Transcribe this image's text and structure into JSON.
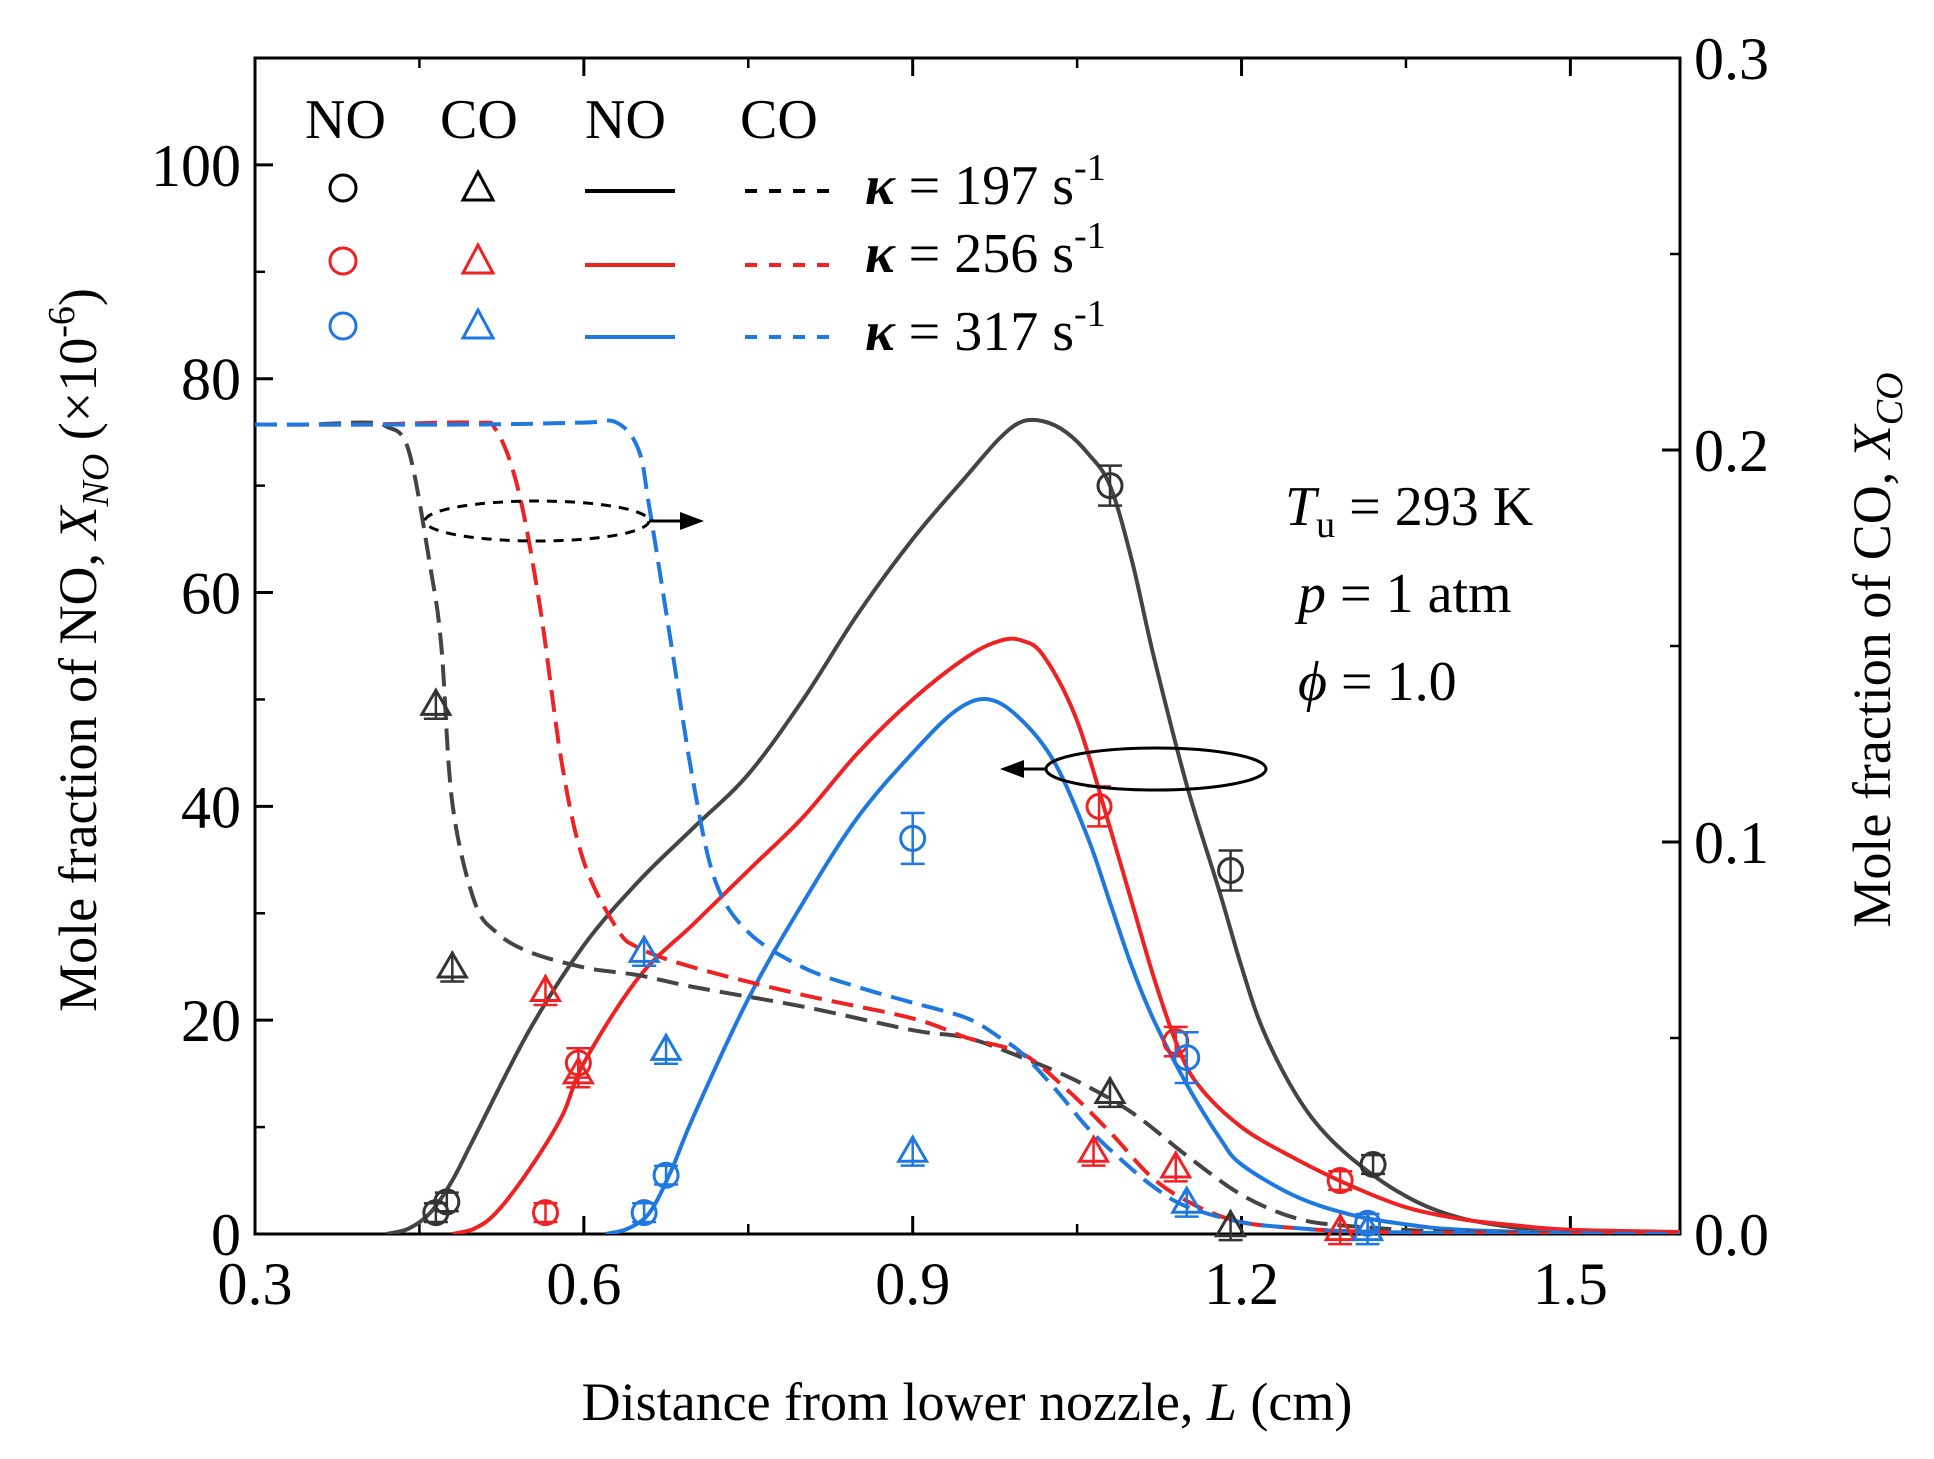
{
  "chart_data": {
    "type": "line",
    "xlabel_prefix": "Distance from lower nozzle, ",
    "xlabel_var": "L",
    "xlabel_suffix": " (cm)",
    "ylabel_left_prefix": "Mole fraction of NO, ",
    "ylabel_left_var": "X",
    "ylabel_left_sub": "NO",
    "ylabel_left_suffix": " (×10",
    "ylabel_left_exp": "-6",
    "ylabel_left_close": ")",
    "ylabel_right_prefix": "Mole fraction of CO, ",
    "ylabel_right_var": "X",
    "ylabel_right_sub": "CO",
    "xlim": [
      0.3,
      1.6
    ],
    "ylim_left": [
      0,
      110
    ],
    "ylim_right": [
      0,
      0.3
    ],
    "x_ticks": [
      0.3,
      0.6,
      0.9,
      1.2,
      1.5
    ],
    "x_tick_labels": [
      "0.3",
      "0.6",
      "0.9",
      "1.2",
      "1.5"
    ],
    "y_left_ticks": [
      0,
      20,
      40,
      60,
      80,
      100
    ],
    "y_left_tick_labels": [
      "0",
      "20",
      "40",
      "60",
      "80",
      "100"
    ],
    "y_right_ticks": [
      0,
      0.1,
      0.2,
      0.3
    ],
    "y_right_tick_labels": [
      "0.0",
      "0.1",
      "0.2",
      "0.3"
    ],
    "legend": {
      "header_symbols_no": "NO",
      "header_symbols_co": "CO",
      "header_lines_no": "NO",
      "header_lines_co": "CO",
      "kappa_symbol": "κ",
      "entries": [
        {
          "value": " = 197 s",
          "exp": "-1",
          "color": "#000000"
        },
        {
          "value": " = 256 s",
          "exp": "-1",
          "color": "#ee2222"
        },
        {
          "value": " = 317 s",
          "exp": "-1",
          "color": "#1f78e0"
        }
      ]
    },
    "conditions": {
      "t_var": "T",
      "t_sub": "u",
      "t_value": " = 293 K",
      "p_var": "p",
      "p_value": " = 1 atm",
      "phi_var": "ϕ",
      "phi_value": " = 1.0"
    },
    "series": [
      {
        "name": "NO model, κ = 197 s-1",
        "species": "NO",
        "axis": "left",
        "kind": "line",
        "color": "#444444",
        "points": [
          [
            0.42,
            0
          ],
          [
            0.44,
            0.5
          ],
          [
            0.46,
            2
          ],
          [
            0.48,
            5
          ],
          [
            0.5,
            9
          ],
          [
            0.55,
            19
          ],
          [
            0.6,
            27
          ],
          [
            0.65,
            33
          ],
          [
            0.7,
            38
          ],
          [
            0.75,
            43
          ],
          [
            0.8,
            50
          ],
          [
            0.85,
            58
          ],
          [
            0.9,
            65
          ],
          [
            0.95,
            71
          ],
          [
            0.98,
            74.5
          ],
          [
            1.0,
            76
          ],
          [
            1.02,
            76
          ],
          [
            1.04,
            75
          ],
          [
            1.06,
            73
          ],
          [
            1.08,
            70
          ],
          [
            1.1,
            63
          ],
          [
            1.12,
            54
          ],
          [
            1.15,
            42
          ],
          [
            1.18,
            32
          ],
          [
            1.2,
            25
          ],
          [
            1.22,
            19
          ],
          [
            1.25,
            13
          ],
          [
            1.28,
            9
          ],
          [
            1.32,
            5.5
          ],
          [
            1.36,
            3
          ],
          [
            1.4,
            1.5
          ],
          [
            1.45,
            0.6
          ],
          [
            1.5,
            0.2
          ],
          [
            1.6,
            0
          ]
        ]
      },
      {
        "name": "NO model, κ = 256 s-1",
        "species": "NO",
        "axis": "left",
        "kind": "line",
        "color": "#ee2222",
        "points": [
          [
            0.48,
            0
          ],
          [
            0.5,
            0.5
          ],
          [
            0.52,
            2
          ],
          [
            0.55,
            6
          ],
          [
            0.58,
            11
          ],
          [
            0.6,
            16
          ],
          [
            0.65,
            24
          ],
          [
            0.7,
            29
          ],
          [
            0.75,
            34
          ],
          [
            0.8,
            39
          ],
          [
            0.85,
            45
          ],
          [
            0.9,
            50
          ],
          [
            0.95,
            54
          ],
          [
            0.98,
            55.5
          ],
          [
            1.0,
            55.5
          ],
          [
            1.02,
            54
          ],
          [
            1.05,
            48
          ],
          [
            1.08,
            38
          ],
          [
            1.1,
            31
          ],
          [
            1.12,
            24
          ],
          [
            1.14,
            18
          ],
          [
            1.16,
            14
          ],
          [
            1.2,
            10
          ],
          [
            1.25,
            7
          ],
          [
            1.3,
            4.5
          ],
          [
            1.35,
            2.5
          ],
          [
            1.4,
            1.4
          ],
          [
            1.45,
            0.8
          ],
          [
            1.5,
            0.4
          ],
          [
            1.6,
            0.2
          ]
        ]
      },
      {
        "name": "NO model, κ = 317 s-1",
        "species": "NO",
        "axis": "left",
        "kind": "line",
        "color": "#1f78e0",
        "points": [
          [
            0.62,
            0
          ],
          [
            0.64,
            0.5
          ],
          [
            0.66,
            2
          ],
          [
            0.68,
            6
          ],
          [
            0.7,
            11
          ],
          [
            0.75,
            22
          ],
          [
            0.8,
            31
          ],
          [
            0.85,
            39
          ],
          [
            0.9,
            45
          ],
          [
            0.94,
            49
          ],
          [
            0.97,
            50
          ],
          [
            1.0,
            48
          ],
          [
            1.03,
            44
          ],
          [
            1.06,
            37
          ],
          [
            1.08,
            31
          ],
          [
            1.1,
            25
          ],
          [
            1.12,
            20
          ],
          [
            1.15,
            14
          ],
          [
            1.18,
            9
          ],
          [
            1.2,
            6.5
          ],
          [
            1.25,
            3.5
          ],
          [
            1.3,
            1.8
          ],
          [
            1.35,
            0.9
          ],
          [
            1.4,
            0.4
          ],
          [
            1.5,
            0.1
          ],
          [
            1.6,
            0
          ]
        ]
      },
      {
        "name": "CO model, κ = 197 s-1",
        "species": "CO",
        "axis": "right",
        "kind": "line",
        "color": "#444444",
        "points": [
          [
            0.3,
            0.2065
          ],
          [
            0.35,
            0.2065
          ],
          [
            0.4,
            0.207
          ],
          [
            0.42,
            0.206
          ],
          [
            0.44,
            0.2
          ],
          [
            0.46,
            0.17
          ],
          [
            0.47,
            0.15
          ],
          [
            0.48,
            0.11
          ],
          [
            0.5,
            0.085
          ],
          [
            0.52,
            0.077
          ],
          [
            0.55,
            0.072
          ],
          [
            0.6,
            0.068
          ],
          [
            0.65,
            0.066
          ],
          [
            0.7,
            0.063
          ],
          [
            0.8,
            0.058
          ],
          [
            0.9,
            0.052
          ],
          [
            0.95,
            0.05
          ],
          [
            1.0,
            0.045
          ],
          [
            1.05,
            0.039
          ],
          [
            1.1,
            0.031
          ],
          [
            1.15,
            0.02
          ],
          [
            1.2,
            0.01
          ],
          [
            1.25,
            0.004
          ],
          [
            1.3,
            0.002
          ],
          [
            1.4,
            0.0005
          ],
          [
            1.6,
            0
          ]
        ]
      },
      {
        "name": "CO model, κ = 256 s-1",
        "species": "CO",
        "axis": "right",
        "kind": "line",
        "color": "#ee2222",
        "points": [
          [
            0.3,
            0.2065
          ],
          [
            0.4,
            0.2065
          ],
          [
            0.5,
            0.207
          ],
          [
            0.52,
            0.205
          ],
          [
            0.54,
            0.19
          ],
          [
            0.56,
            0.16
          ],
          [
            0.58,
            0.12
          ],
          [
            0.6,
            0.095
          ],
          [
            0.63,
            0.078
          ],
          [
            0.65,
            0.073
          ],
          [
            0.7,
            0.068
          ],
          [
            0.8,
            0.061
          ],
          [
            0.9,
            0.055
          ],
          [
            0.95,
            0.05
          ],
          [
            1.0,
            0.046
          ],
          [
            1.04,
            0.037
          ],
          [
            1.08,
            0.026
          ],
          [
            1.12,
            0.014
          ],
          [
            1.16,
            0.007
          ],
          [
            1.2,
            0.003
          ],
          [
            1.25,
            0.0015
          ],
          [
            1.3,
            0.0007
          ],
          [
            1.4,
            0.0002
          ],
          [
            1.6,
            0
          ]
        ]
      },
      {
        "name": "CO model, κ = 317 s-1",
        "species": "CO",
        "axis": "right",
        "kind": "line",
        "color": "#1f78e0",
        "points": [
          [
            0.3,
            0.2065
          ],
          [
            0.5,
            0.2065
          ],
          [
            0.6,
            0.207
          ],
          [
            0.63,
            0.207
          ],
          [
            0.65,
            0.2
          ],
          [
            0.66,
            0.185
          ],
          [
            0.68,
            0.15
          ],
          [
            0.7,
            0.115
          ],
          [
            0.72,
            0.09
          ],
          [
            0.75,
            0.077
          ],
          [
            0.8,
            0.068
          ],
          [
            0.85,
            0.063
          ],
          [
            0.9,
            0.059
          ],
          [
            0.95,
            0.055
          ],
          [
            0.98,
            0.05
          ],
          [
            1.0,
            0.046
          ],
          [
            1.03,
            0.037
          ],
          [
            1.06,
            0.027
          ],
          [
            1.09,
            0.019
          ],
          [
            1.12,
            0.012
          ],
          [
            1.15,
            0.007
          ],
          [
            1.2,
            0.003
          ],
          [
            1.25,
            0.0015
          ],
          [
            1.3,
            0.0007
          ],
          [
            1.4,
            0.0002
          ],
          [
            1.6,
            0
          ]
        ]
      },
      {
        "name": "NO exp, κ = 197 s-1",
        "species": "NO",
        "axis": "left",
        "kind": "scatter",
        "marker": "circle",
        "color": "#333333",
        "points": [
          [
            0.465,
            2,
            0.5
          ],
          [
            0.475,
            3,
            0.5
          ],
          [
            1.08,
            70,
            1.5
          ],
          [
            1.19,
            34,
            1.5
          ],
          [
            1.32,
            6.5,
            0.5
          ]
        ]
      },
      {
        "name": "NO exp, κ = 256 s-1",
        "species": "NO",
        "axis": "left",
        "kind": "scatter",
        "marker": "circle",
        "color": "#ee2222",
        "points": [
          [
            0.565,
            2,
            0.5
          ],
          [
            0.595,
            16,
            1.0
          ],
          [
            1.07,
            40,
            1.5
          ],
          [
            1.14,
            18,
            1.0
          ],
          [
            1.29,
            5,
            0.5
          ]
        ]
      },
      {
        "name": "NO exp, κ = 317 s-1",
        "species": "NO",
        "axis": "left",
        "kind": "scatter",
        "marker": "circle",
        "color": "#1f78e0",
        "points": [
          [
            0.655,
            2,
            0.5
          ],
          [
            0.675,
            5.5,
            0.5
          ],
          [
            0.9,
            37,
            2.0
          ],
          [
            1.15,
            16.5,
            2.0
          ],
          [
            1.315,
            1,
            0.5
          ]
        ]
      },
      {
        "name": "CO exp, κ = 197 s-1",
        "species": "CO",
        "axis": "right",
        "kind": "scatter",
        "marker": "triangle",
        "color": "#333333",
        "points": [
          [
            0.465,
            0.135
          ],
          [
            0.48,
            0.068
          ],
          [
            1.08,
            0.036
          ],
          [
            1.19,
            0.002
          ]
        ]
      },
      {
        "name": "CO exp, κ = 256 s-1",
        "species": "CO",
        "axis": "right",
        "kind": "scatter",
        "marker": "triangle",
        "color": "#ee2222",
        "points": [
          [
            0.565,
            0.062
          ],
          [
            0.595,
            0.041
          ],
          [
            1.065,
            0.021
          ],
          [
            1.14,
            0.017
          ],
          [
            1.29,
            0.001
          ]
        ]
      },
      {
        "name": "CO exp, κ = 317 s-1",
        "species": "CO",
        "axis": "right",
        "kind": "scatter",
        "marker": "triangle",
        "color": "#1f78e0",
        "points": [
          [
            0.655,
            0.072
          ],
          [
            0.675,
            0.047
          ],
          [
            0.9,
            0.021
          ],
          [
            1.15,
            0.008
          ],
          [
            1.315,
            0.001
          ]
        ]
      }
    ]
  }
}
